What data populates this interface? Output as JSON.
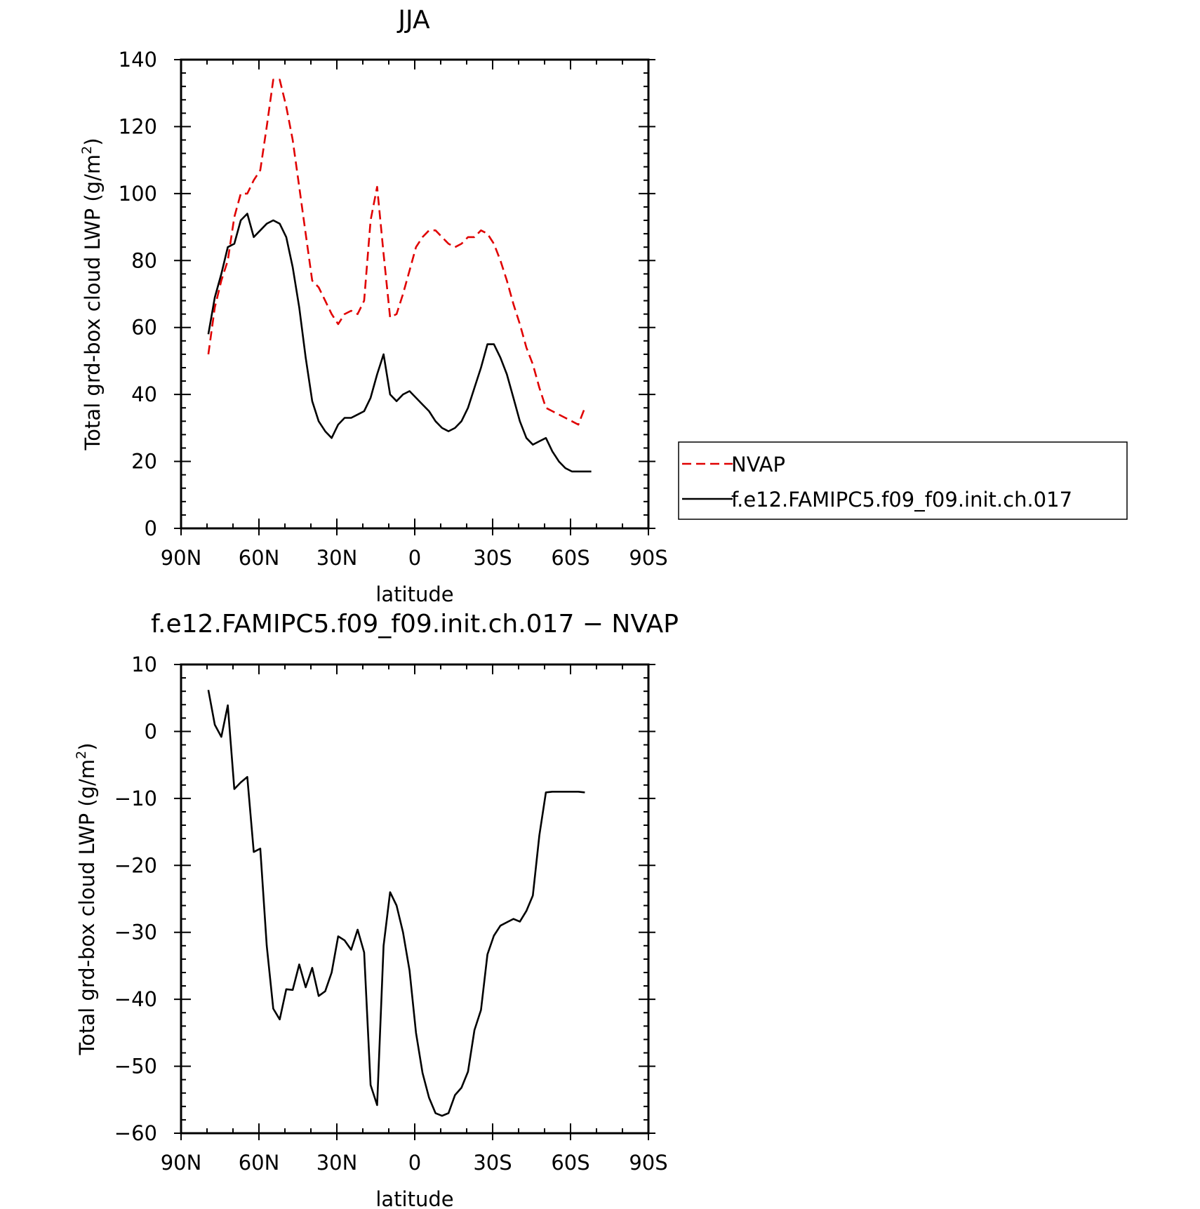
{
  "chart_data": [
    {
      "type": "line",
      "title": "JJA",
      "xlabel": "latitude",
      "ylabel": "Total grd-box cloud LWP (g/m²)",
      "ylabel_parts": [
        "Total grd-box cloud LWP (g/m",
        "2",
        ")"
      ],
      "xlim": [
        90,
        -90
      ],
      "ylim": [
        0,
        140
      ],
      "xticks": [
        {
          "value": 90,
          "label": "90N"
        },
        {
          "value": 60,
          "label": "60N"
        },
        {
          "value": 30,
          "label": "30N"
        },
        {
          "value": 0,
          "label": "0"
        },
        {
          "value": -30,
          "label": "30S"
        },
        {
          "value": -60,
          "label": "60S"
        },
        {
          "value": -90,
          "label": "90S"
        }
      ],
      "yticks": [
        0,
        20,
        40,
        60,
        80,
        100,
        120,
        140
      ],
      "legend_position": "right",
      "series": [
        {
          "name": "NVAP",
          "color": "#e00000",
          "dash": true,
          "x": [
            79.5,
            77,
            74.5,
            72,
            69.5,
            67,
            64.5,
            62,
            59.5,
            57,
            54.5,
            52,
            49.5,
            47,
            44.5,
            42,
            39.5,
            37,
            34.5,
            32,
            29.5,
            27,
            24.5,
            22,
            19.5,
            17,
            14.5,
            12,
            9.5,
            7,
            4.5,
            2,
            -0.5,
            -3,
            -5.5,
            -8,
            -10.5,
            -13,
            -15.5,
            -18,
            -20.5,
            -23,
            -25.5,
            -28,
            -30.5,
            -33,
            -35.5,
            -38,
            -40.5,
            -43,
            -45.5,
            -48,
            -50.5,
            -53,
            -55.5,
            -58,
            -60.5,
            -63,
            -65.5
          ],
          "values": [
            52,
            66,
            74,
            80,
            93,
            100,
            100,
            104,
            107,
            120,
            134,
            134,
            126,
            116,
            102,
            88,
            74,
            72,
            68,
            64,
            61,
            64,
            65,
            64,
            68,
            92,
            102,
            82,
            63,
            64,
            70,
            77,
            84,
            87,
            89,
            89,
            87,
            85,
            84,
            85,
            87,
            87,
            89,
            88,
            85,
            80,
            74,
            67,
            61,
            54,
            49,
            42,
            36,
            35,
            34,
            33,
            32,
            31,
            36
          ]
        },
        {
          "name": "f.e12.FAMIPC5.f09_f09.init.ch.017",
          "color": "#000000",
          "dash": false,
          "x": [
            79.5,
            77,
            74.5,
            72,
            69.5,
            67,
            64.5,
            62,
            59.5,
            57,
            54.5,
            52,
            49.5,
            47,
            44.5,
            42,
            39.5,
            37,
            34.5,
            32,
            29.5,
            27,
            24.5,
            22,
            19.5,
            17,
            14.5,
            12,
            9.5,
            7,
            4.5,
            2,
            -0.5,
            -3,
            -5.5,
            -8,
            -10.5,
            -13,
            -15.5,
            -18,
            -20.5,
            -23,
            -25.5,
            -28,
            -30.5,
            -33,
            -35.5,
            -38,
            -40.5,
            -43,
            -45.5,
            -48,
            -50.5,
            -53,
            -55.5,
            -58,
            -60.5,
            -63,
            -65.5,
            -68
          ],
          "values": [
            58,
            69,
            76,
            84,
            85,
            92,
            94,
            87,
            89,
            91,
            92,
            91,
            87,
            78,
            66,
            51,
            38,
            32,
            29,
            27,
            31,
            33,
            33,
            34,
            35,
            39,
            46,
            52,
            40,
            38,
            40,
            41,
            39,
            37,
            35,
            32,
            30,
            29,
            30,
            32,
            36,
            42,
            48,
            55,
            55,
            51,
            46,
            39,
            32,
            27,
            25,
            26,
            27,
            23,
            20,
            18,
            17,
            17,
            17,
            17
          ]
        }
      ]
    },
    {
      "type": "line",
      "title": "f.e12.FAMIPC5.f09_f09.init.ch.017 − NVAP",
      "xlabel": "latitude",
      "ylabel": "Total grd-box cloud LWP (g/m²)",
      "ylabel_parts": [
        "Total grd-box cloud LWP (g/m",
        "2",
        ")"
      ],
      "xlim": [
        90,
        -90
      ],
      "ylim": [
        -60,
        10
      ],
      "xticks": [
        {
          "value": 90,
          "label": "90N"
        },
        {
          "value": 60,
          "label": "60N"
        },
        {
          "value": 30,
          "label": "30N"
        },
        {
          "value": 0,
          "label": "0"
        },
        {
          "value": -30,
          "label": "30S"
        },
        {
          "value": -60,
          "label": "60S"
        },
        {
          "value": -90,
          "label": "90S"
        }
      ],
      "yticks": [
        {
          "value": 10,
          "label": "10"
        },
        {
          "value": 0,
          "label": "0"
        },
        {
          "value": -10,
          "label": "−10"
        },
        {
          "value": -20,
          "label": "−20"
        },
        {
          "value": -30,
          "label": "−30"
        },
        {
          "value": -40,
          "label": "−40"
        },
        {
          "value": -50,
          "label": "−50"
        },
        {
          "value": -60,
          "label": "−60"
        }
      ],
      "series": [
        {
          "color": "#000000",
          "dash": false,
          "x": [
            79.5,
            77,
            74.5,
            72,
            69.5,
            67,
            64.5,
            62,
            59.5,
            57,
            54.5,
            52,
            49.5,
            47,
            44.5,
            42,
            39.5,
            37,
            34.5,
            32,
            29.5,
            27,
            24.5,
            22,
            19.5,
            17,
            14.5,
            12,
            9.5,
            7,
            4.5,
            2,
            -0.5,
            -3,
            -5.5,
            -8,
            -10.5,
            -13,
            -15.5,
            -18,
            -20.5,
            -23,
            -25.5,
            -28,
            -30.5,
            -33,
            -35.5,
            -38,
            -40.5,
            -43,
            -45.5,
            -48,
            -50.5,
            -53,
            -55.5,
            -58,
            -60.5,
            -63,
            -65.5
          ],
          "values": [
            6.2,
            1,
            -0.8,
            3.9,
            -8.6,
            -7.6,
            -6.8,
            -18,
            -17.5,
            -32,
            -41.4,
            -43,
            -38.5,
            -38.6,
            -34.8,
            -38.2,
            -35.3,
            -39.5,
            -38.8,
            -36,
            -30.6,
            -31.2,
            -32.6,
            -29.6,
            -33,
            -52.8,
            -55.8,
            -32,
            -24,
            -26,
            -30,
            -35.7,
            -45,
            -51,
            -54.7,
            -57,
            -57.4,
            -57,
            -54.3,
            -53.2,
            -50.8,
            -44.6,
            -41.6,
            -33.3,
            -30.5,
            -29,
            -28.5,
            -28,
            -28.4,
            -26.8,
            -24.5,
            -15.5,
            -9.1,
            -9,
            -9,
            -9,
            -9,
            -9,
            -9.1
          ]
        }
      ]
    }
  ]
}
